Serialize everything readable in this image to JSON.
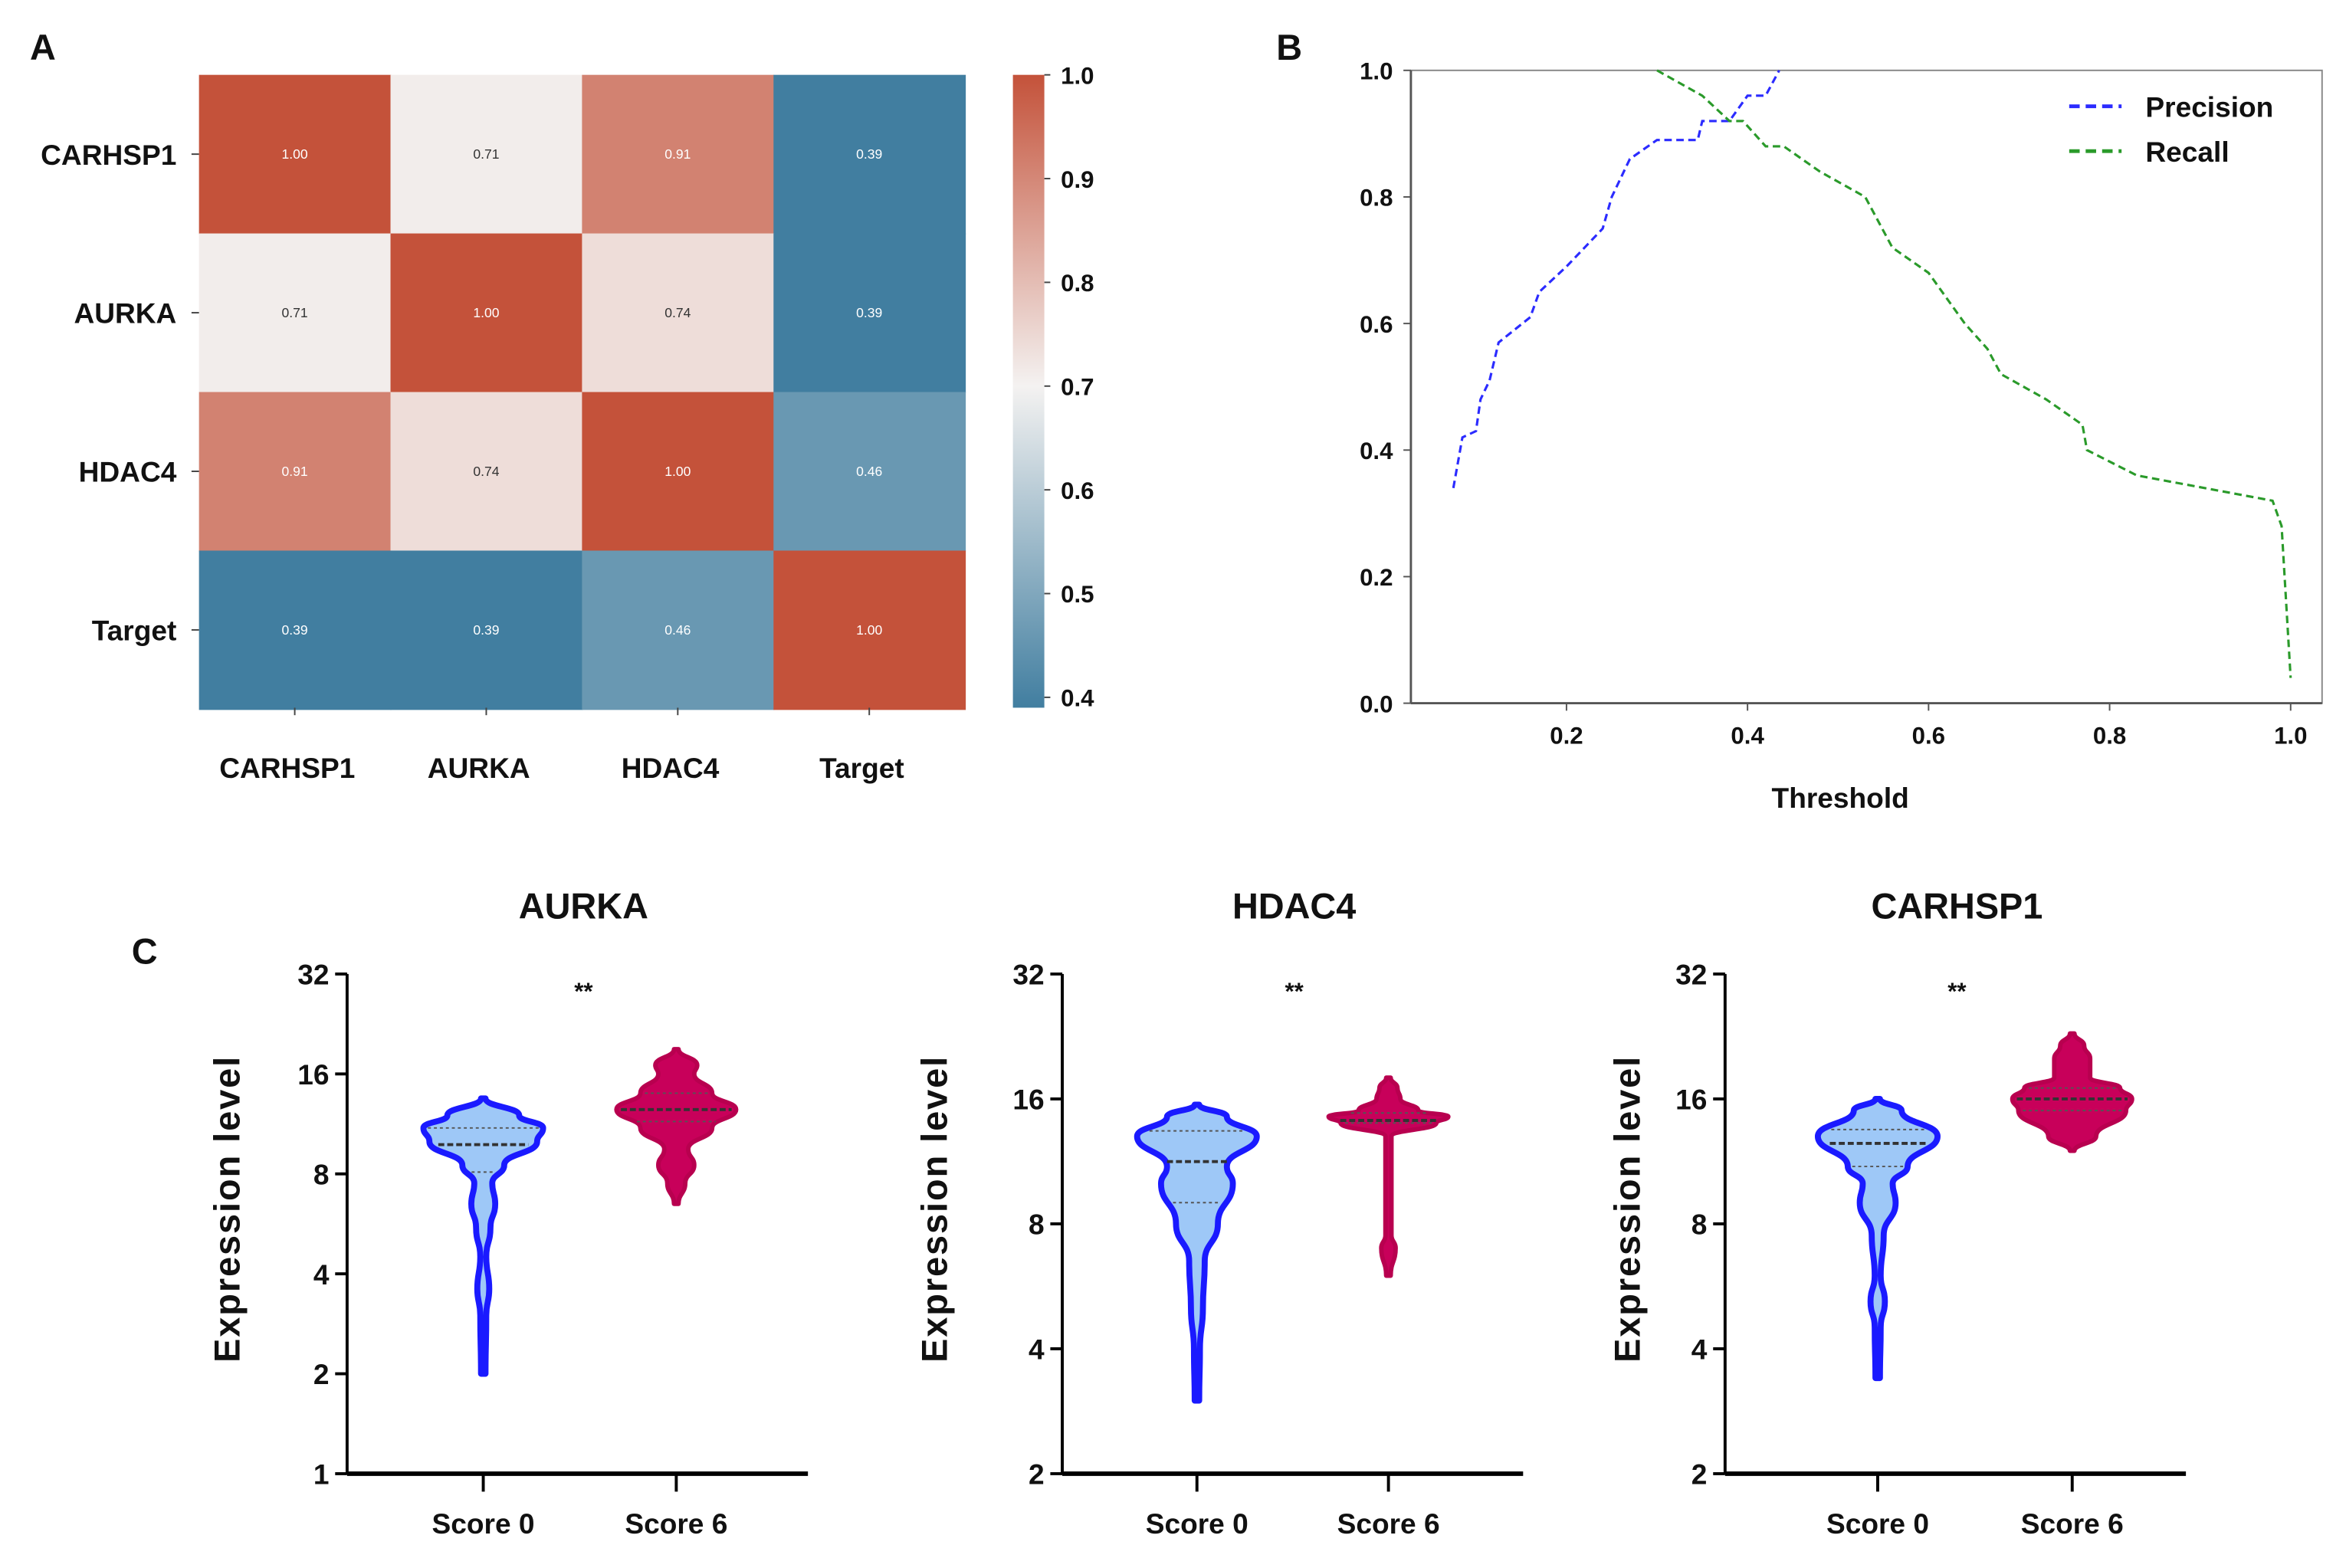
{
  "panels": {
    "a": "A",
    "b": "B",
    "c": "C"
  },
  "chart_data": [
    {
      "type": "heatmap",
      "title": "",
      "rows": [
        "CARHSP1",
        "AURKA",
        "HDAC4",
        "Target"
      ],
      "cols": [
        "CARHSP1",
        "AURKA",
        "HDAC4",
        "Target"
      ],
      "values": [
        [
          1.0,
          0.71,
          0.91,
          0.39
        ],
        [
          0.71,
          1.0,
          0.74,
          0.39
        ],
        [
          0.91,
          0.74,
          1.0,
          0.46
        ],
        [
          0.39,
          0.39,
          0.46,
          1.0
        ]
      ],
      "colorbar": {
        "range": [
          0.39,
          1.0
        ],
        "ticks": [
          "1.0",
          "0.9",
          "0.8",
          "0.7",
          "0.6",
          "0.5",
          "0.4"
        ],
        "low_color": "#417ea0",
        "mid_color": "#f4f2f1",
        "high_color": "#c4523a"
      }
    },
    {
      "type": "line",
      "xlabel": "Threshold",
      "ylabel": "",
      "xlim": [
        0.04,
        1.04
      ],
      "ylim": [
        0,
        1
      ],
      "xticks": [
        "0.2",
        "0.4",
        "0.6",
        "0.8",
        "1.0"
      ],
      "yticks": [
        "0.0",
        "0.2",
        "0.4",
        "0.6",
        "0.8",
        "1.0"
      ],
      "legend": "top-right",
      "series": [
        {
          "name": "Precision",
          "color": "#2b2bff",
          "x": [
            0.075,
            0.085,
            0.1,
            0.105,
            0.115,
            0.125,
            0.16,
            0.17,
            0.2,
            0.24,
            0.25,
            0.27,
            0.3,
            0.345,
            0.35,
            0.38,
            0.4,
            0.42,
            0.435
          ],
          "y": [
            0.34,
            0.42,
            0.43,
            0.48,
            0.51,
            0.57,
            0.61,
            0.65,
            0.69,
            0.75,
            0.8,
            0.86,
            0.89,
            0.89,
            0.92,
            0.92,
            0.96,
            0.96,
            1.0
          ]
        },
        {
          "name": "Recall",
          "color": "#2a9a2a",
          "x": [
            0.3,
            0.35,
            0.38,
            0.395,
            0.42,
            0.44,
            0.48,
            0.53,
            0.56,
            0.6,
            0.64,
            0.665,
            0.68,
            0.73,
            0.77,
            0.775,
            0.83,
            0.98,
            0.99,
            1.0
          ],
          "y": [
            1.0,
            0.96,
            0.92,
            0.92,
            0.88,
            0.88,
            0.84,
            0.8,
            0.72,
            0.68,
            0.6,
            0.56,
            0.52,
            0.48,
            0.44,
            0.4,
            0.36,
            0.32,
            0.28,
            0.04
          ]
        }
      ]
    },
    {
      "type": "violin",
      "plots": [
        {
          "title": "AURKA",
          "ylabel": "Expression level",
          "yscale": "log2",
          "ylim": [
            1,
            32
          ],
          "yticks": [
            "1",
            "2",
            "4",
            "8",
            "16",
            "32"
          ],
          "significance": "**",
          "groups": [
            {
              "name": "Score 0",
              "color": "#1a1aff",
              "fill": "#9ec8f7",
              "median": 9.8,
              "q1": 8.1,
              "q3": 11,
              "profile": [
                [
                  2,
                  0
                ],
                [
                  3,
                  0.05
                ],
                [
                  3.6,
                  0.1
                ],
                [
                  4.5,
                  0.05
                ],
                [
                  5.5,
                  0.12
                ],
                [
                  6.5,
                  0.2
                ],
                [
                  7.5,
                  0.15
                ],
                [
                  8.5,
                  0.35
                ],
                [
                  10,
                  0.9
                ],
                [
                  11,
                  1
                ],
                [
                  12,
                  0.6
                ],
                [
                  13.5,
                  0
                ]
              ]
            },
            {
              "name": "Score 6",
              "color": "#b8004f",
              "fill": "#c8005a",
              "median": 12.5,
              "q1": 11.5,
              "q3": 14,
              "profile": [
                [
                  6.5,
                  0
                ],
                [
                  7.5,
                  0.15
                ],
                [
                  8.5,
                  0.3
                ],
                [
                  9.5,
                  0.2
                ],
                [
                  11,
                  0.6
                ],
                [
                  12.5,
                  1
                ],
                [
                  14,
                  0.6
                ],
                [
                  16,
                  0.3
                ],
                [
                  17,
                  0.35
                ],
                [
                  19,
                  0
                ]
              ]
            }
          ]
        },
        {
          "title": "HDAC4",
          "ylabel": "Expression level",
          "yscale": "log2",
          "ylim": [
            2,
            32
          ],
          "yticks": [
            "2",
            "4",
            "8",
            "16",
            "32"
          ],
          "significance": "**",
          "groups": [
            {
              "name": "Score 0",
              "color": "#1a1aff",
              "fill": "#9ec8f7",
              "median": 11.3,
              "q1": 9,
              "q3": 13.4,
              "profile": [
                [
                  3,
                  0
                ],
                [
                  4,
                  0.05
                ],
                [
                  5,
                  0.1
                ],
                [
                  6.5,
                  0.13
                ],
                [
                  8,
                  0.35
                ],
                [
                  10,
                  0.6
                ],
                [
                  11,
                  0.5
                ],
                [
                  13,
                  1
                ],
                [
                  14.5,
                  0.5
                ],
                [
                  15.5,
                  0
                ]
              ]
            },
            {
              "name": "Score 6",
              "color": "#b8004f",
              "fill": "#c8005a",
              "median": 14.2,
              "q1": 14,
              "q3": 14.8,
              "profile": [
                [
                  6,
                  0
                ],
                [
                  7,
                  0.12
                ],
                [
                  7.5,
                  0.05
                ],
                [
                  13,
                  0.05
                ],
                [
                  14,
                  0.8
                ],
                [
                  14.5,
                  1
                ],
                [
                  15,
                  0.5
                ],
                [
                  16,
                  0.2
                ],
                [
                  17,
                  0.15
                ],
                [
                  18,
                  0
                ]
              ]
            }
          ]
        },
        {
          "title": "CARHSP1",
          "ylabel": "Expression level",
          "yscale": "log2",
          "ylim": [
            2,
            32
          ],
          "yticks": [
            "2",
            "4",
            "8",
            "16",
            "32"
          ],
          "significance": "**",
          "groups": [
            {
              "name": "Score 0",
              "color": "#1a1aff",
              "fill": "#9ec8f7",
              "median": 12.5,
              "q1": 11,
              "q3": 13.5,
              "profile": [
                [
                  3.4,
                  0
                ],
                [
                  4.5,
                  0.05
                ],
                [
                  5.2,
                  0.12
                ],
                [
                  6,
                  0.05
                ],
                [
                  7.5,
                  0.1
                ],
                [
                  9,
                  0.3
                ],
                [
                  10,
                  0.25
                ],
                [
                  11,
                  0.5
                ],
                [
                  13,
                  1
                ],
                [
                  15,
                  0.4
                ],
                [
                  16,
                  0
                ]
              ]
            },
            {
              "name": "Score 6",
              "color": "#b8004f",
              "fill": "#c8005a",
              "median": 16,
              "q1": 15,
              "q3": 17,
              "profile": [
                [
                  12,
                  0
                ],
                [
                  13,
                  0.4
                ],
                [
                  15,
                  0.9
                ],
                [
                  16,
                  1
                ],
                [
                  17,
                  0.8
                ],
                [
                  18,
                  0.3
                ],
                [
                  20,
                  0.3
                ],
                [
                  21.5,
                  0.2
                ],
                [
                  23,
                  0
                ]
              ]
            }
          ]
        }
      ]
    }
  ]
}
